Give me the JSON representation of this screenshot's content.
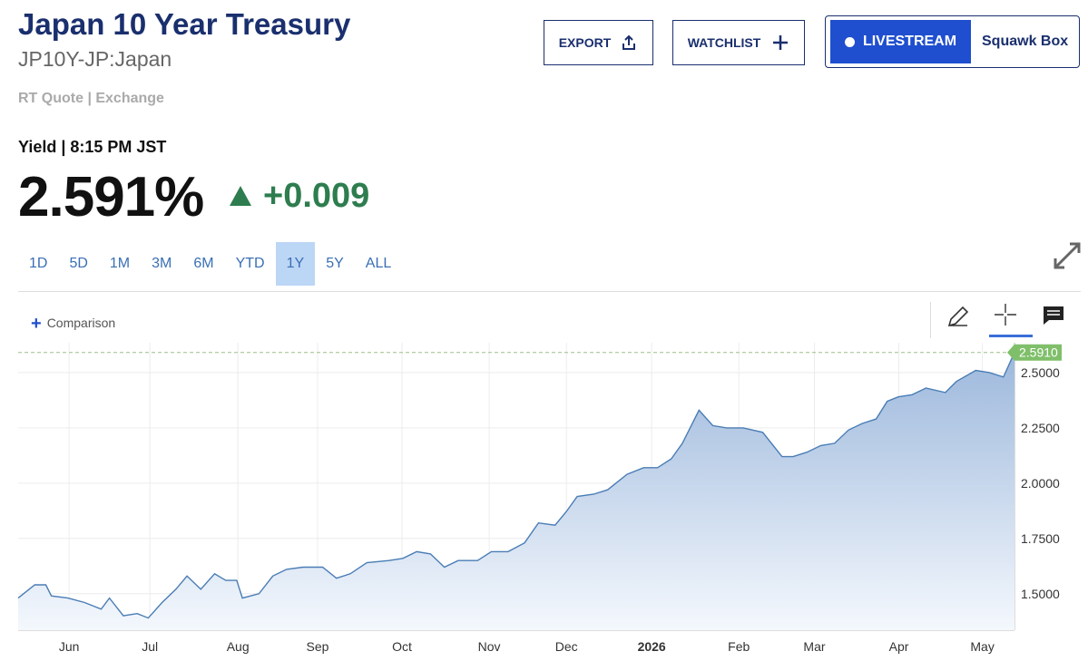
{
  "header": {
    "title": "Japan 10 Year Treasury",
    "symbol": "JP10Y-JP:Japan",
    "quote_type": "RT Quote | Exchange",
    "buttons": {
      "export": "EXPORT",
      "watchlist": "WATCHLIST",
      "livestream": "LIVESTREAM",
      "squawk": "Squawk Box"
    }
  },
  "quote": {
    "time": "Yield | 8:15 PM JST",
    "price": "2.591%",
    "change": "+0.009"
  },
  "ranges": [
    "1D",
    "5D",
    "1M",
    "3M",
    "6M",
    "YTD",
    "1Y",
    "5Y",
    "ALL"
  ],
  "active_range": "1Y",
  "toolbar": {
    "comparison": "Comparison"
  },
  "chart_data": {
    "type": "area",
    "color": "#4a7db5",
    "x": [
      0,
      6,
      10,
      12,
      18,
      24,
      30,
      33,
      38,
      43,
      47,
      52,
      57,
      61,
      66,
      71,
      75,
      79,
      81,
      87,
      92,
      97,
      103,
      110,
      115,
      120,
      126,
      134,
      139,
      144,
      149,
      154,
      159,
      166,
      171,
      177,
      183,
      188,
      194,
      198,
      202,
      208,
      213,
      220,
      226,
      231,
      236,
      240,
      246,
      251,
      256,
      262,
      269,
      276,
      280,
      285,
      290,
      295,
      300,
      305,
      310,
      314,
      318,
      323,
      328,
      335,
      339,
      346,
      351,
      356,
      360
    ],
    "values": [
      1.48,
      1.54,
      1.54,
      1.49,
      1.48,
      1.46,
      1.43,
      1.48,
      1.4,
      1.41,
      1.39,
      1.46,
      1.52,
      1.58,
      1.52,
      1.59,
      1.56,
      1.56,
      1.48,
      1.5,
      1.58,
      1.61,
      1.62,
      1.62,
      1.57,
      1.59,
      1.64,
      1.65,
      1.66,
      1.69,
      1.68,
      1.62,
      1.65,
      1.65,
      1.69,
      1.69,
      1.73,
      1.82,
      1.81,
      1.87,
      1.94,
      1.95,
      1.97,
      2.04,
      2.07,
      2.07,
      2.11,
      2.18,
      2.33,
      2.26,
      2.25,
      2.25,
      2.23,
      2.12,
      2.12,
      2.14,
      2.17,
      2.18,
      2.24,
      2.27,
      2.29,
      2.37,
      2.39,
      2.4,
      2.43,
      2.41,
      2.46,
      2.51,
      2.5,
      2.48,
      2.591
    ],
    "xlim": [
      0,
      360
    ],
    "xticks": [
      {
        "value": 18.4,
        "label": "Jun"
      },
      {
        "value": 47.6,
        "label": "Jul"
      },
      {
        "value": 79.4,
        "label": "Aug"
      },
      {
        "value": 108.2,
        "label": "Sep"
      },
      {
        "value": 138.7,
        "label": "Oct"
      },
      {
        "value": 170.2,
        "label": "Nov"
      },
      {
        "value": 198.1,
        "label": "Dec"
      },
      {
        "value": 228.9,
        "label": "2026"
      },
      {
        "value": 260.4,
        "label": "Feb"
      },
      {
        "value": 287.7,
        "label": "Mar"
      },
      {
        "value": 318.2,
        "label": "Apr"
      },
      {
        "value": 348.4,
        "label": "May"
      }
    ],
    "ylim": [
      1.335,
      2.635
    ],
    "yticks": [
      {
        "value": 1.5,
        "label": "1.5000"
      },
      {
        "value": 1.75,
        "label": "1.7500"
      },
      {
        "value": 2.0,
        "label": "2.0000"
      },
      {
        "value": 2.25,
        "label": "2.2500"
      },
      {
        "value": 2.5,
        "label": "2.5000"
      }
    ],
    "last_price": {
      "value": 2.591,
      "label": "2.5910"
    },
    "grid": true
  }
}
